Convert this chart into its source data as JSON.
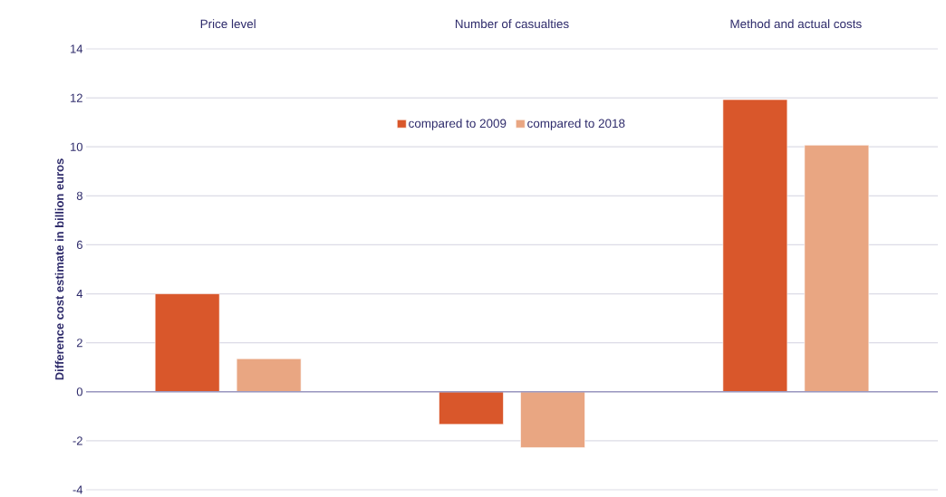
{
  "chart_data": {
    "type": "bar",
    "ylabel": "Difference cost estimate in billion euros",
    "categories": [
      "Price level",
      "Number of casualties",
      "Method and actual costs"
    ],
    "series": [
      {
        "name": "compared to 2009",
        "color": "#d9572b",
        "values": [
          4.0,
          -1.33,
          11.93
        ]
      },
      {
        "name": "compared to 2018",
        "color": "#e9a682",
        "values": [
          1.35,
          -2.28,
          10.07
        ]
      }
    ],
    "ylim": [
      -4,
      14
    ],
    "yticks": [
      -4,
      -2,
      0,
      2,
      4,
      6,
      8,
      10,
      12,
      14
    ],
    "grid": "y",
    "legend": "top",
    "ref_lines": [
      {
        "axis": "y",
        "value": 0,
        "color": "#9a97c0"
      }
    ]
  }
}
